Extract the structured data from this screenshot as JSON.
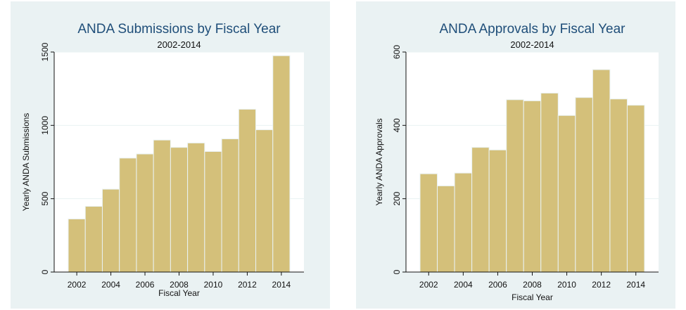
{
  "chart_data": [
    {
      "type": "bar",
      "title": "ANDA Submissions by Fiscal Year",
      "subtitle": "2002-2014",
      "xlabel": "Fiscal Year",
      "ylabel": "Yearly ANDA Submissions",
      "categories": [
        2002,
        2003,
        2004,
        2005,
        2006,
        2007,
        2008,
        2009,
        2010,
        2011,
        2012,
        2013,
        2014
      ],
      "values": [
        362,
        448,
        565,
        777,
        805,
        900,
        850,
        880,
        822,
        908,
        1110,
        970,
        1475
      ],
      "xticks": [
        "2002",
        "2004",
        "2006",
        "2008",
        "2010",
        "2012",
        "2014"
      ],
      "yticks": [
        "0",
        "500",
        "1000",
        "1500"
      ],
      "ylim": [
        0,
        1500
      ],
      "grid": true,
      "color": "#d4c07a"
    },
    {
      "type": "bar",
      "title": "ANDA Approvals by Fiscal Year",
      "subtitle": "2002-2014",
      "xlabel": "Fiscal Year",
      "ylabel": "Yearly ANDA Approvals",
      "categories": [
        2002,
        2003,
        2004,
        2005,
        2006,
        2007,
        2008,
        2009,
        2010,
        2011,
        2012,
        2013,
        2014
      ],
      "values": [
        268,
        235,
        270,
        340,
        333,
        470,
        467,
        488,
        427,
        476,
        552,
        472,
        455
      ],
      "xticks": [
        "2002",
        "2004",
        "2006",
        "2008",
        "2010",
        "2012",
        "2014"
      ],
      "yticks": [
        "0",
        "200",
        "400",
        "600"
      ],
      "ylim": [
        0,
        600
      ],
      "grid": true,
      "color": "#d4c07a"
    }
  ]
}
